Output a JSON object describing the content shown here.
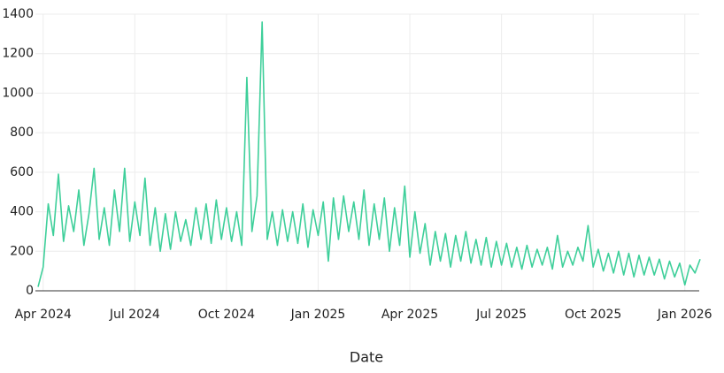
{
  "chart_data": {
    "type": "line",
    "x_label": "Date",
    "categories": [
      null,
      "Apr 2024",
      null,
      null,
      null,
      null,
      null,
      null,
      null,
      null,
      null,
      null,
      null,
      null,
      null,
      null,
      null,
      null,
      null,
      "Jul 2024",
      null,
      null,
      null,
      null,
      null,
      null,
      null,
      null,
      null,
      null,
      null,
      null,
      null,
      null,
      null,
      null,
      null,
      "Oct 2024",
      null,
      null,
      null,
      null,
      null,
      null,
      null,
      null,
      null,
      null,
      null,
      null,
      null,
      null,
      null,
      null,
      null,
      "Jan 2025",
      null,
      null,
      null,
      null,
      null,
      null,
      null,
      null,
      null,
      null,
      null,
      null,
      null,
      null,
      null,
      null,
      null,
      "Apr 2025",
      null,
      null,
      null,
      null,
      null,
      null,
      null,
      null,
      null,
      null,
      null,
      null,
      null,
      null,
      null,
      null,
      null,
      "Jul 2025",
      null,
      null,
      null,
      null,
      null,
      null,
      null,
      null,
      null,
      null,
      null,
      null,
      null,
      null,
      null,
      null,
      null,
      "Oct 2025",
      null,
      null,
      null,
      null,
      null,
      null,
      null,
      null,
      null,
      null,
      null,
      null,
      null,
      null,
      null,
      null,
      null,
      "Jan 2026",
      null,
      null,
      null
    ],
    "values": [
      20,
      120,
      440,
      280,
      590,
      250,
      430,
      300,
      510,
      230,
      390,
      620,
      260,
      420,
      230,
      510,
      300,
      620,
      250,
      450,
      280,
      570,
      230,
      420,
      200,
      390,
      210,
      400,
      250,
      360,
      230,
      420,
      260,
      440,
      240,
      460,
      260,
      420,
      250,
      400,
      230,
      1080,
      300,
      480,
      1360,
      260,
      400,
      230,
      410,
      250,
      400,
      240,
      440,
      220,
      410,
      280,
      450,
      150,
      470,
      260,
      480,
      300,
      450,
      260,
      510,
      230,
      440,
      260,
      470,
      200,
      420,
      230,
      530,
      170,
      400,
      190,
      340,
      130,
      300,
      150,
      290,
      120,
      280,
      150,
      300,
      140,
      260,
      130,
      270,
      120,
      250,
      130,
      240,
      120,
      220,
      110,
      230,
      120,
      210,
      130,
      220,
      110,
      280,
      120,
      200,
      130,
      220,
      150,
      330,
      120,
      210,
      100,
      190,
      90,
      200,
      80,
      190,
      70,
      180,
      80,
      170,
      80,
      160,
      60,
      150,
      70,
      140,
      30,
      130,
      90,
      160
    ],
    "color": "#3ecf9a",
    "ylim": [
      0,
      1400
    ],
    "yticks": [
      0,
      200,
      400,
      600,
      800,
      1000,
      1200,
      1400
    ],
    "grid": true
  }
}
